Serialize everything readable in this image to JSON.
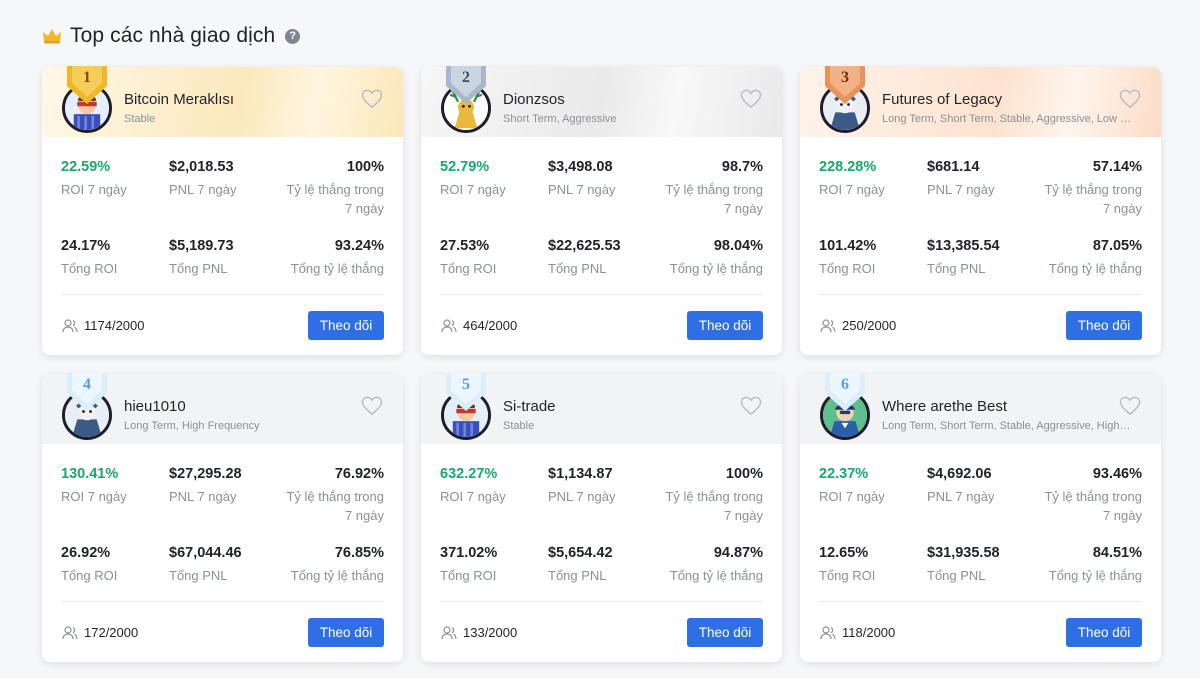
{
  "header": {
    "title": "Top các nhà giao dịch",
    "help": "?"
  },
  "colors": {
    "accent": "#2f6fe6",
    "positive": "#1aa76b",
    "gold": "#f2b728",
    "silver": "#a9b8c8",
    "bronze": "#e8925a"
  },
  "labels": {
    "roi7": "ROI 7 ngày",
    "pnl7": "PNL 7 ngày",
    "win7": "Tỷ lệ thắng trong 7 ngày",
    "roiTotal": "Tổng ROI",
    "pnlTotal": "Tổng PNL",
    "winTotal": "Tổng tỷ lệ thắng",
    "follow": "Theo dõi"
  },
  "traders": [
    {
      "rank": "1",
      "name": "Bitcoin Meraklısı",
      "tags": "Stable",
      "roi7": "22.59%",
      "pnl7": "$2,018.53",
      "win7": "100%",
      "roiTotal": "24.17%",
      "pnlTotal": "$5,189.73",
      "winTotal": "93.24%",
      "followers": "1174/2000"
    },
    {
      "rank": "2",
      "name": "Dionzsos",
      "tags": "Short Term, Aggressive",
      "roi7": "52.79%",
      "pnl7": "$3,498.08",
      "win7": "98.7%",
      "roiTotal": "27.53%",
      "pnlTotal": "$22,625.53",
      "winTotal": "98.04%",
      "followers": "464/2000"
    },
    {
      "rank": "3",
      "name": "Futures of Legacy",
      "tags": "Long Term, Short Term, Stable, Aggressive, Low Fre...",
      "roi7": "228.28%",
      "pnl7": "$681.14",
      "win7": "57.14%",
      "roiTotal": "101.42%",
      "pnlTotal": "$13,385.54",
      "winTotal": "87.05%",
      "followers": "250/2000"
    },
    {
      "rank": "4",
      "name": "hieu1010",
      "tags": "Long Term, High Frequency",
      "roi7": "130.41%",
      "pnl7": "$27,295.28",
      "win7": "76.92%",
      "roiTotal": "26.92%",
      "pnlTotal": "$67,044.46",
      "winTotal": "76.85%",
      "followers": "172/2000"
    },
    {
      "rank": "5",
      "name": "Si-trade",
      "tags": "Stable",
      "roi7": "632.27%",
      "pnl7": "$1,134.87",
      "win7": "100%",
      "roiTotal": "371.02%",
      "pnlTotal": "$5,654.42",
      "winTotal": "94.87%",
      "followers": "133/2000"
    },
    {
      "rank": "6",
      "name": "Where arethe Best",
      "tags": "Long Term, Short Term, Stable, Aggressive, High Fr...",
      "roi7": "22.37%",
      "pnl7": "$4,692.06",
      "win7": "93.46%",
      "roiTotal": "12.65%",
      "pnlTotal": "$31,935.58",
      "winTotal": "84.51%",
      "followers": "118/2000"
    }
  ]
}
